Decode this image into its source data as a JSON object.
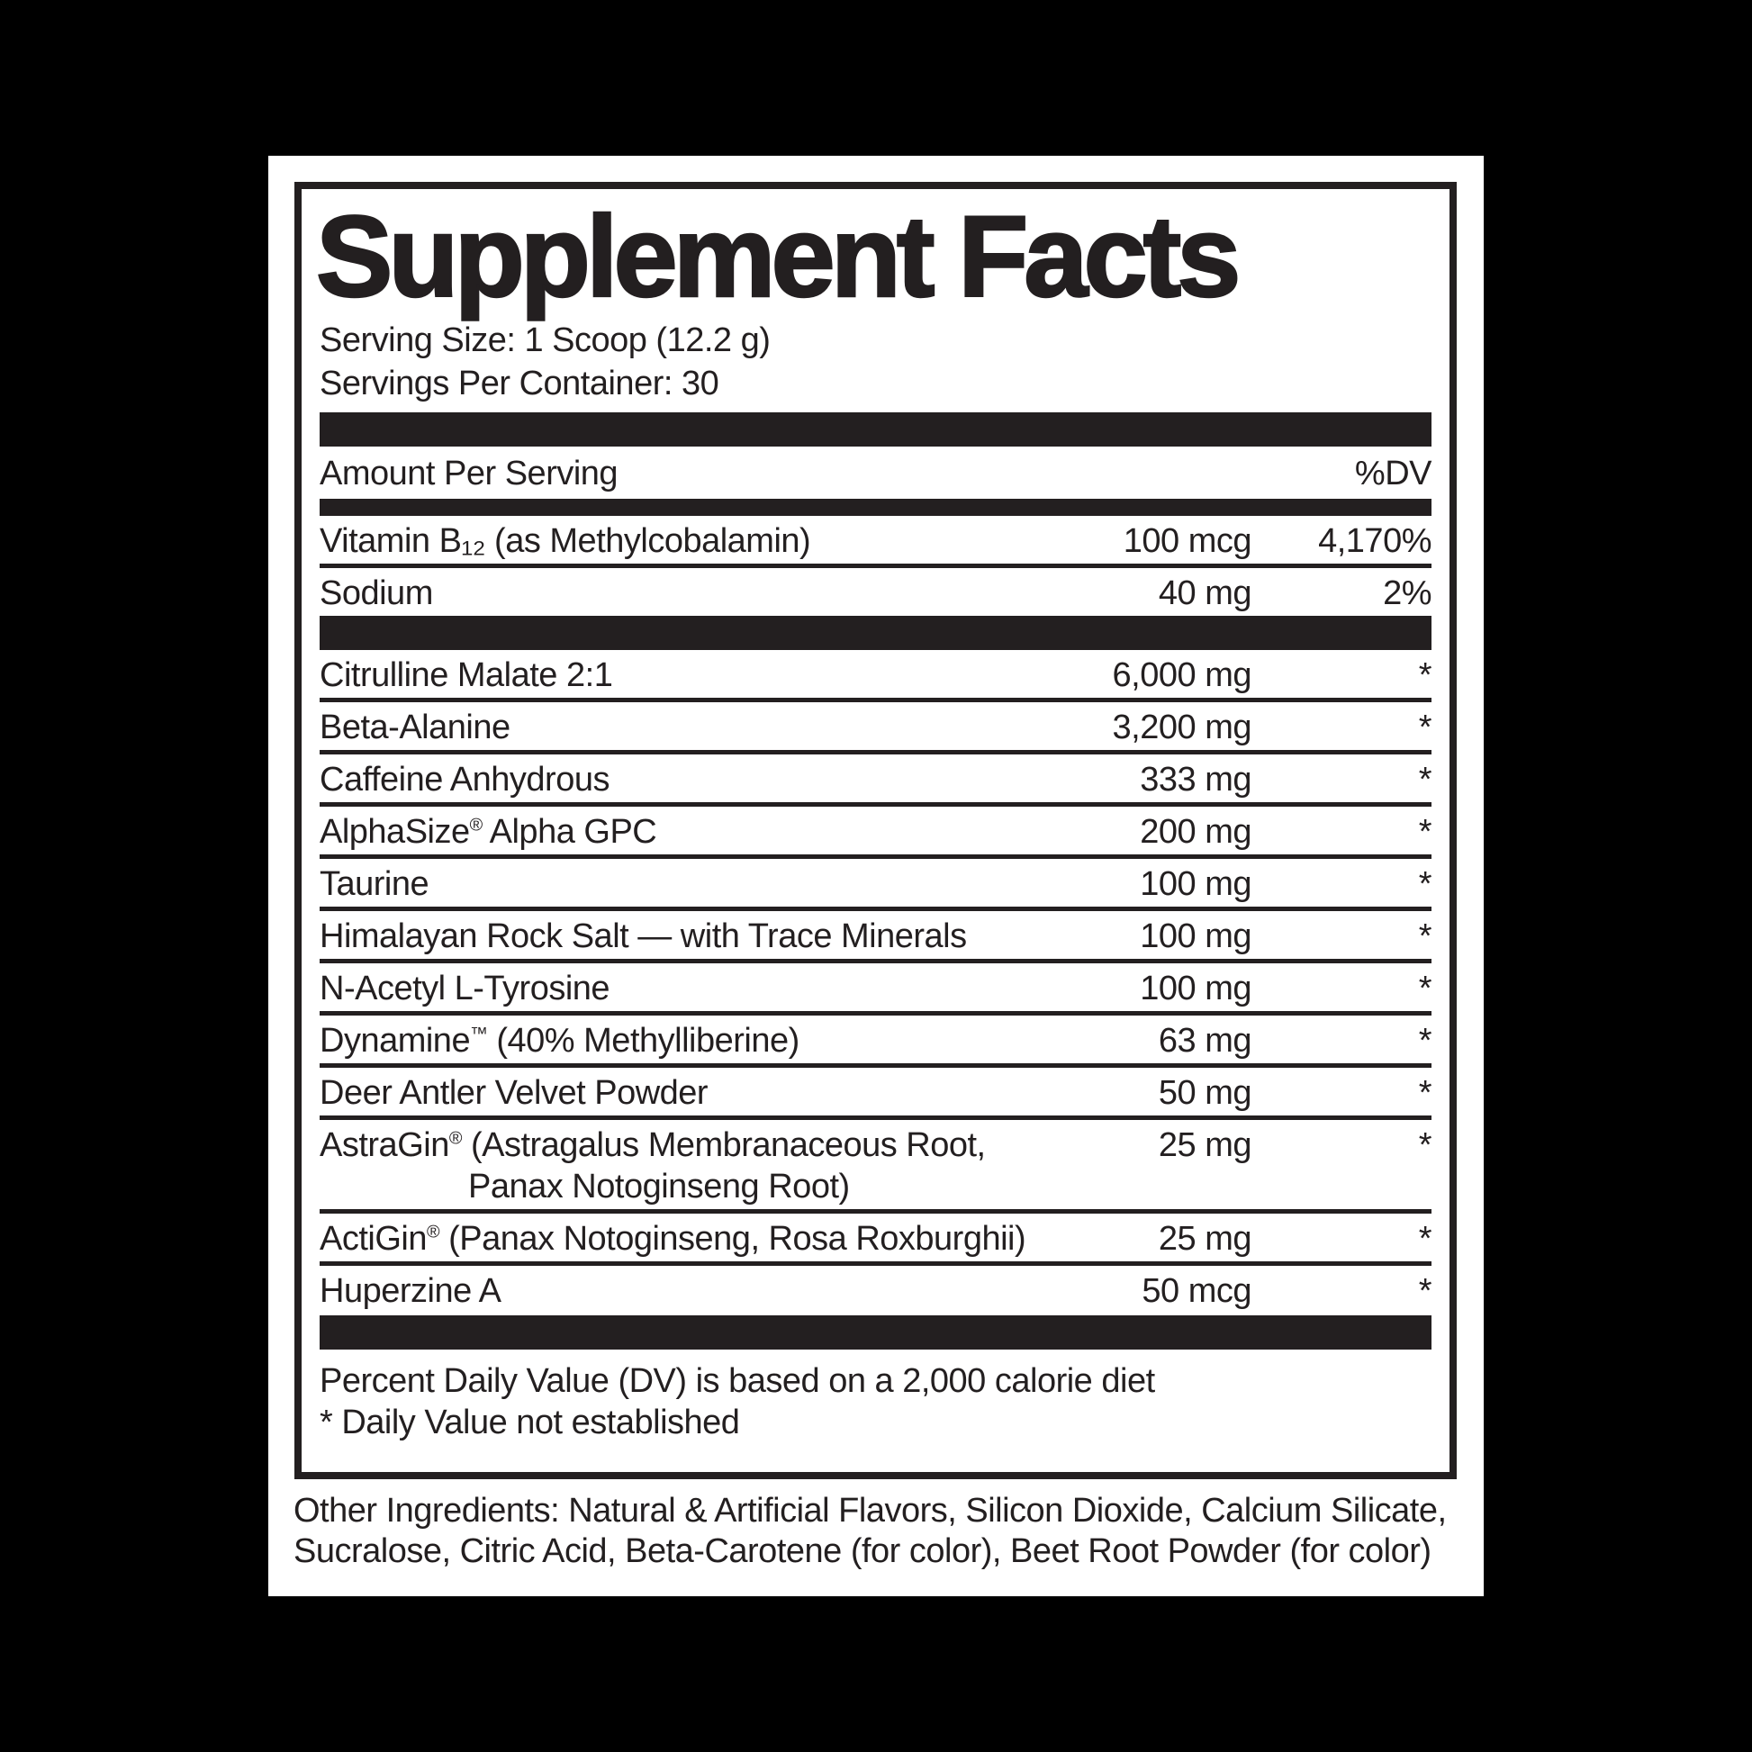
{
  "label": {
    "title": "Supplement Facts",
    "serving_size": "Serving Size: 1 Scoop (12.2 g)",
    "servings_per_container": "Servings Per Container: 30",
    "header": {
      "amount": "Amount Per Serving",
      "dv": "%DV"
    },
    "nutrients": [
      {
        "name": "Vitamin B₁₂ (as Methylcobalamin)",
        "amount": "100 mcg",
        "dv": "4,170%"
      },
      {
        "name": "Sodium",
        "amount": "40 mg",
        "dv": "2%"
      }
    ],
    "ingredients": [
      {
        "name": "Citrulline Malate 2:1",
        "amount": "6,000 mg",
        "dv": "*"
      },
      {
        "name": "Beta-Alanine",
        "amount": "3,200 mg",
        "dv": "*"
      },
      {
        "name": "Caffeine Anhydrous",
        "amount": "333 mg",
        "dv": "*"
      },
      {
        "name": "AlphaSize® Alpha GPC",
        "amount": "200 mg",
        "dv": "*"
      },
      {
        "name": "Taurine",
        "amount": "100 mg",
        "dv": "*"
      },
      {
        "name": "Himalayan Rock Salt — with Trace Minerals",
        "amount": "100 mg",
        "dv": "*"
      },
      {
        "name": "N-Acetyl L-Tyrosine",
        "amount": "100 mg",
        "dv": "*"
      },
      {
        "name": "Dynamine™ (40% Methylliberine)",
        "amount": "63 mg",
        "dv": "*"
      },
      {
        "name": "Deer Antler Velvet Powder",
        "amount": "50 mg",
        "dv": "*"
      },
      {
        "name": "AstraGin® (Astragalus Membranaceous Root,",
        "name_line2": "Panax Notoginseng Root)",
        "amount": "25 mg",
        "dv": "*"
      },
      {
        "name": "ActiGin® (Panax Notoginseng, Rosa Roxburghii)",
        "amount": "25 mg",
        "dv": "*"
      },
      {
        "name": "Huperzine A",
        "amount": "50 mcg",
        "dv": "*"
      }
    ],
    "footnotes": [
      "Percent Daily Value (DV) is based on a 2,000 calorie diet",
      "* Daily Value not established"
    ],
    "other_ingredients": "Other Ingredients: Natural & Artificial Flavors, Silicon Dioxide, Calcium Silicate, Sucralose, Citric Acid, Beta-Carotene (for color), Beet Root Powder (for color)",
    "colors": {
      "ink": "#231f20",
      "paper": "#ffffff",
      "background": "#000000"
    }
  }
}
